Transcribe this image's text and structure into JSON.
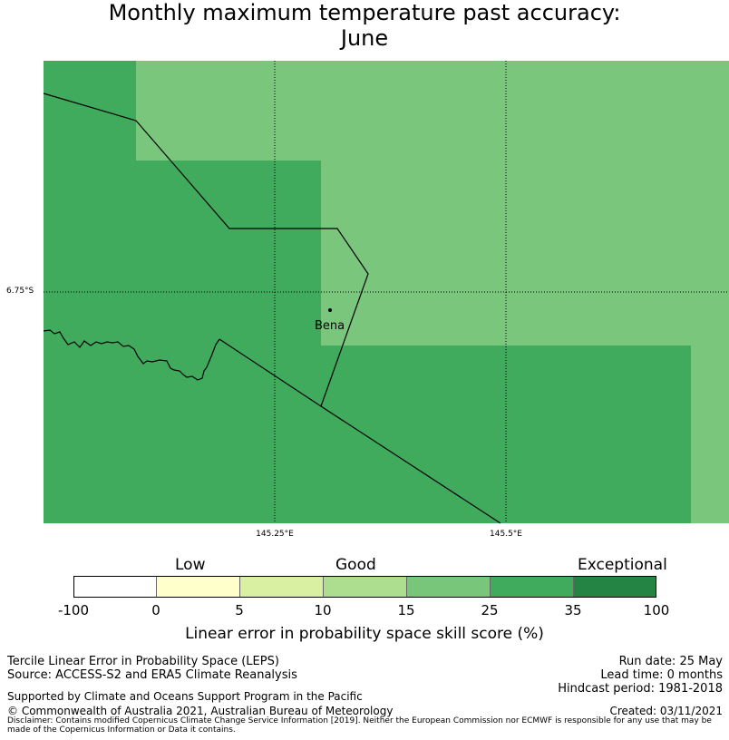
{
  "title": {
    "line1": "Monthly maximum temperature past accuracy:",
    "line2": "June"
  },
  "map": {
    "lat_label": "6.75°S",
    "lon_labels": [
      "145.25°E",
      "145.5°E"
    ],
    "place": "Bena",
    "colors": {
      "good_light": "#79c67c",
      "good_dark": "#41ab5d"
    }
  },
  "colorbar": {
    "categories": [
      "Low",
      "Good",
      "Exceptional"
    ],
    "ticks": [
      "-100",
      "0",
      "5",
      "10",
      "15",
      "25",
      "35",
      "100"
    ],
    "segment_colors": [
      "#ffffff",
      "#ffffcc",
      "#d9f0a3",
      "#addd8e",
      "#78c679",
      "#41ab5d",
      "#238443"
    ],
    "label": "Linear error in probability space skill score (%)"
  },
  "info": {
    "left": [
      "Tercile Linear Error in Probability Space (LEPS)",
      "Source: ACCESS-S2 and ERA5 Climate Reanalysis"
    ],
    "right": [
      "Run date: 25 May",
      "Lead time: 0 months",
      "Hindcast period: 1981-2018"
    ],
    "support": "Supported by Climate and Oceans Support Program in the Pacific",
    "copyright": "© Commonwealth of Australia 2021, Australian Bureau of Meteorology",
    "created": "Created: 03/11/2021",
    "disclaimer": "Disclaimer: Contains modified Copernicus Climate Change Service Information [2019]. Neither the European Commission nor ECMWF is responsible for any use that may be made of the Copernicus Information or Data it contains."
  }
}
